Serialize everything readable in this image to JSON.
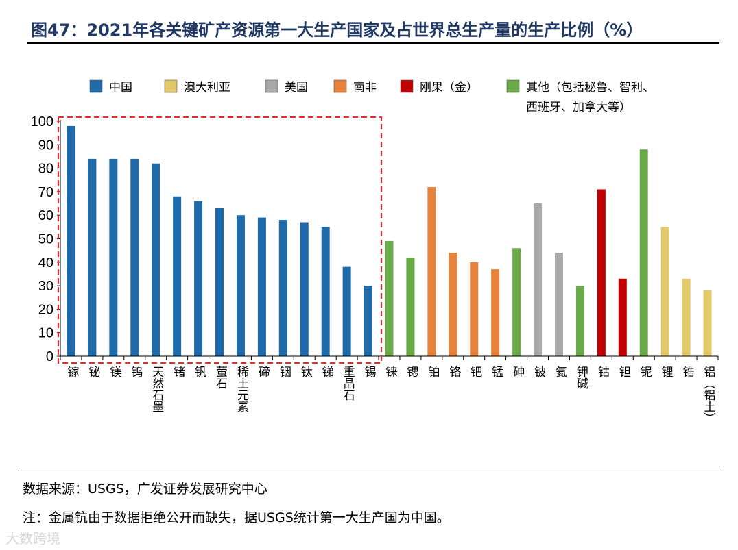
{
  "title": "图47：2021年各关键矿产资源第一大生产国家及占世界总生产量的生产比例（%）",
  "source": "数据来源：USGS，广发证券发展研究中心",
  "note": "注：金属钪由于数据拒绝公开而缺失，据USGS统计第一大生产国为中国。",
  "watermark": "大数跨境",
  "chart_data": {
    "type": "bar",
    "title": "2021年各关键矿产资源第一大生产国家及占世界总生产量的生产比例（%）",
    "xlabel": "",
    "ylabel": "",
    "ylim": [
      0,
      100
    ],
    "yticks": [
      0,
      10,
      20,
      30,
      40,
      50,
      60,
      70,
      80,
      90,
      100
    ],
    "legend": [
      {
        "name": "中国",
        "color": "#1f6aa9"
      },
      {
        "name": "澳大利亚",
        "color": "#e3c86a"
      },
      {
        "name": "美国",
        "color": "#a9a9ab"
      },
      {
        "name": "南非",
        "color": "#e6823a"
      },
      {
        "name": "刚果（金）",
        "color": "#c00000"
      },
      {
        "name": "其他（包括秘鲁、智利、西班牙、加拿大等）",
        "color": "#6aaa48"
      }
    ],
    "legend_position": "top",
    "categories": [
      "镓",
      "铋",
      "镁",
      "钨",
      "天然石墨",
      "锗",
      "钒",
      "萤石",
      "稀土元素",
      "碲",
      "铟",
      "钛",
      "锑",
      "重晶石",
      "锡",
      "铼",
      "锶",
      "铂",
      "铬",
      "钯",
      "锰",
      "砷",
      "铍",
      "氦",
      "钾碱",
      "钴",
      "钽",
      "铌",
      "锂",
      "锆",
      "铝（铝土）"
    ],
    "values": [
      98,
      84,
      84,
      84,
      82,
      68,
      66,
      63,
      60,
      59,
      58,
      57,
      55,
      38,
      30,
      49,
      42,
      72,
      44,
      40,
      37,
      46,
      65,
      44,
      30,
      71,
      33,
      88,
      55,
      33,
      28
    ],
    "countries": [
      "中国",
      "中国",
      "中国",
      "中国",
      "中国",
      "中国",
      "中国",
      "中国",
      "中国",
      "中国",
      "中国",
      "中国",
      "中国",
      "中国",
      "中国",
      "其他（包括秘鲁、智利、西班牙、加拿大等）",
      "其他（包括秘鲁、智利、西班牙、加拿大等）",
      "南非",
      "南非",
      "南非",
      "南非",
      "其他（包括秘鲁、智利、西班牙、加拿大等）",
      "美国",
      "美国",
      "其他（包括秘鲁、智利、西班牙、加拿大等）",
      "刚果（金）",
      "刚果（金）",
      "其他（包括秘鲁、智利、西班牙、加拿大等）",
      "澳大利亚",
      "澳大利亚",
      "澳大利亚"
    ],
    "highlight": {
      "from": "镓",
      "to": "锡",
      "style": "red-dashed-box"
    }
  }
}
